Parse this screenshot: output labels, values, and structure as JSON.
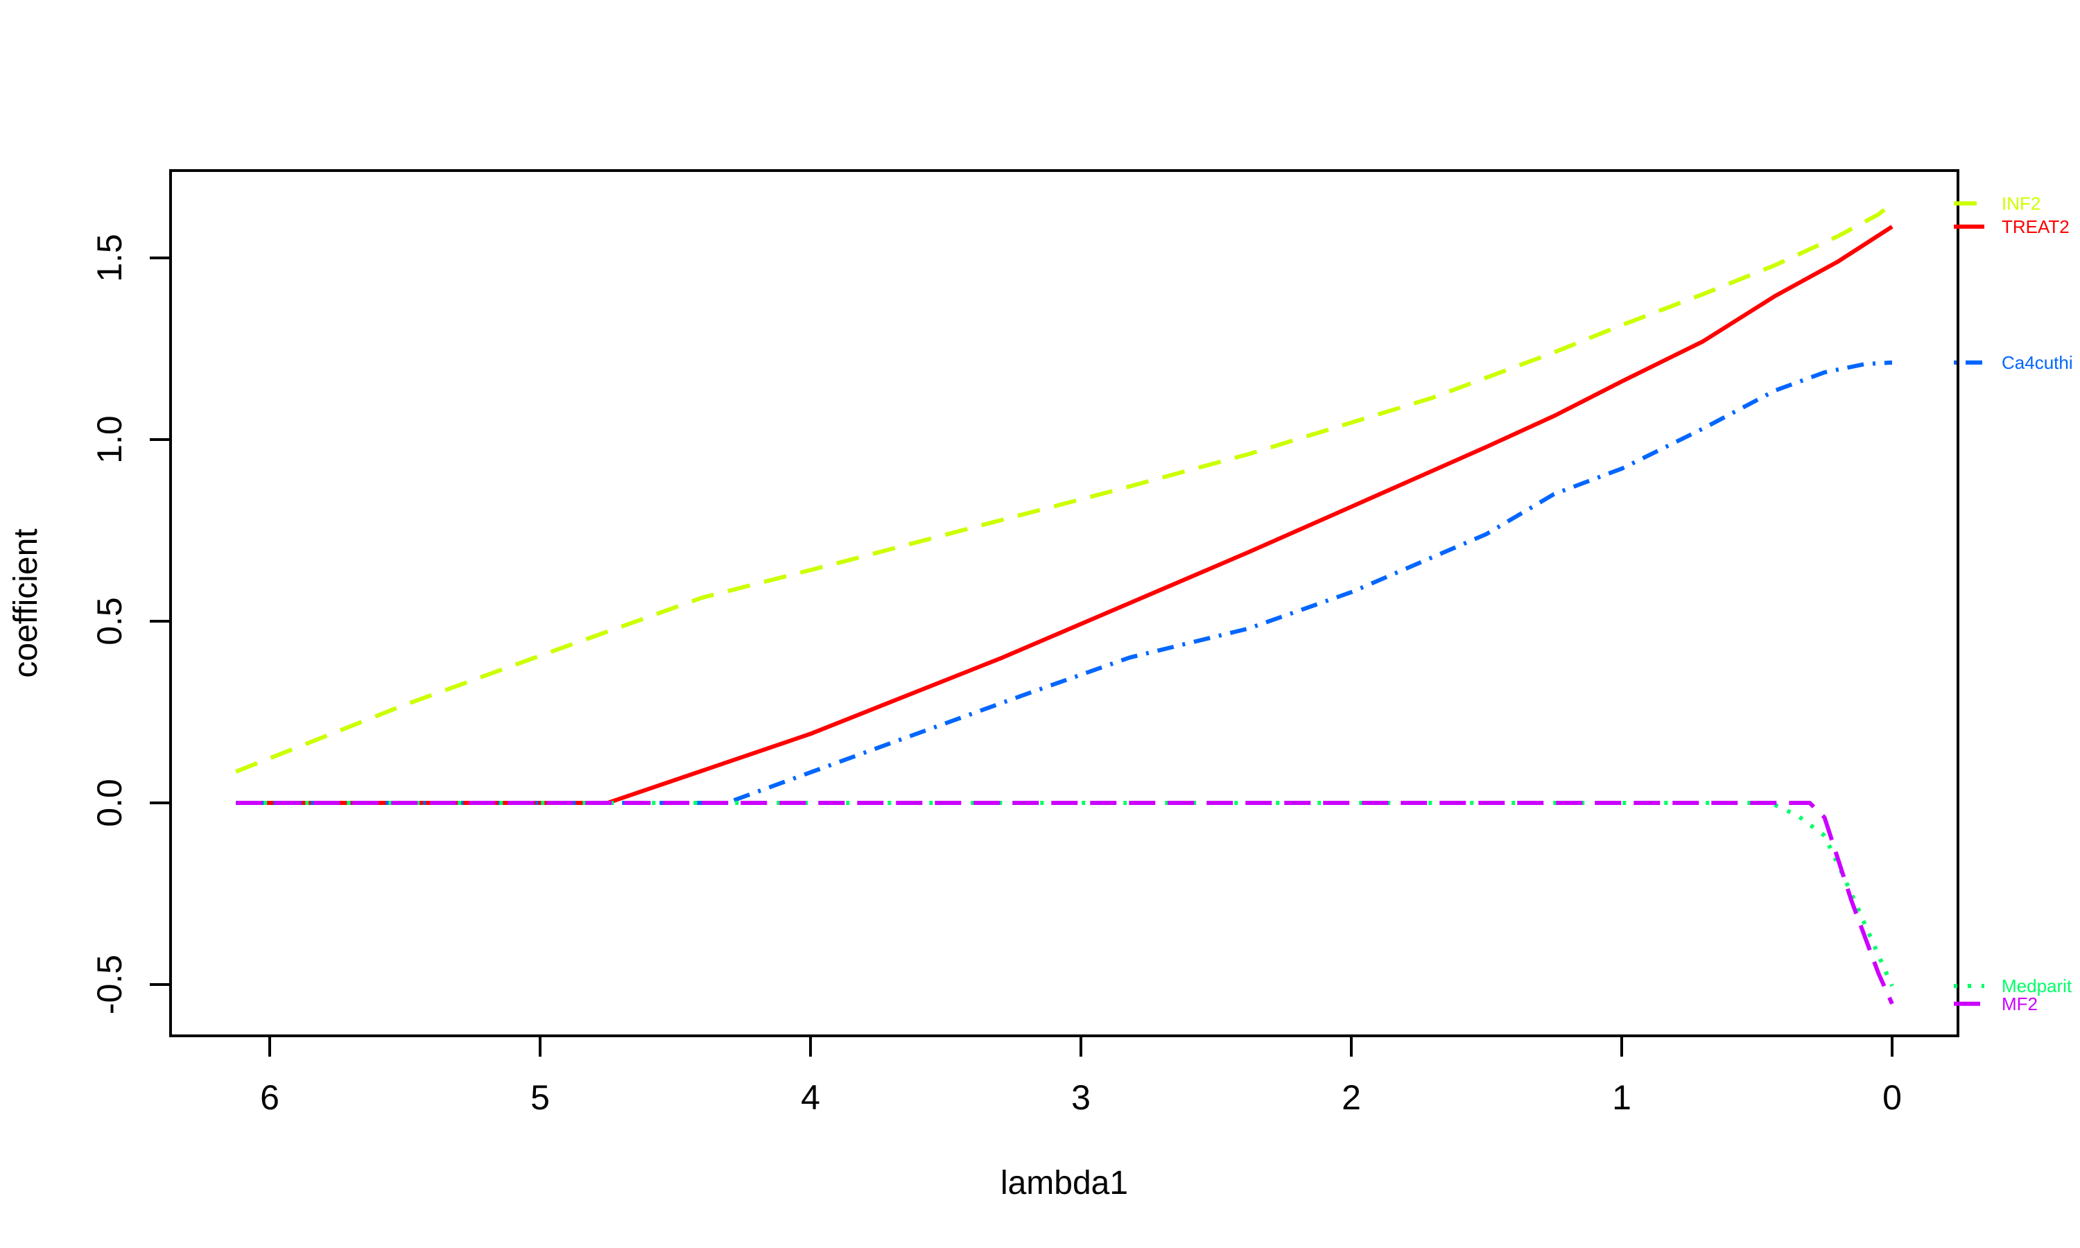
{
  "figure": {
    "background": "#FFFFFF",
    "axis_color": "#000000"
  },
  "chart_data": {
    "type": "line",
    "title": "",
    "xlabel": "lambda1",
    "ylabel": "coefficient",
    "x_reversed": true,
    "grid": false,
    "xlim": [
      6.37,
      -0.24
    ],
    "ylim": [
      -0.64,
      1.74
    ],
    "x_ticks": [
      "6",
      "5",
      "4",
      "3",
      "2",
      "1",
      "0"
    ],
    "y_ticks": [
      "-0.5",
      "0.0",
      "0.5",
      "1.0",
      "1.5"
    ],
    "legend_position": "right-margin-at-curve-end",
    "series": [
      {
        "name": "INF2",
        "color": "#CCFF00",
        "linestyle": "dashed",
        "dash": [
          33,
          21
        ],
        "points": [
          [
            6.125,
            0.086
          ],
          [
            5.5,
            0.27
          ],
          [
            5.0,
            0.405
          ],
          [
            4.4,
            0.565
          ],
          [
            3.9,
            0.66
          ],
          [
            3.41,
            0.756
          ],
          [
            2.9,
            0.855
          ],
          [
            2.38,
            0.96
          ],
          [
            1.7,
            1.115
          ],
          [
            1.25,
            1.24
          ],
          [
            1.0,
            1.315
          ],
          [
            0.7,
            1.4
          ],
          [
            0.433,
            1.48
          ],
          [
            0.2,
            1.56
          ],
          [
            0.05,
            1.62
          ],
          [
            0.0,
            1.65
          ]
        ]
      },
      {
        "name": "TREAT2",
        "color": "#FF0000",
        "linestyle": "solid",
        "dash": [],
        "points": [
          [
            6.125,
            0.0
          ],
          [
            4.75,
            0.0
          ],
          [
            4.0,
            0.19
          ],
          [
            3.29,
            0.4
          ],
          [
            2.38,
            0.69
          ],
          [
            2.0,
            0.815
          ],
          [
            1.5,
            0.98
          ],
          [
            1.25,
            1.065
          ],
          [
            1.0,
            1.16
          ],
          [
            0.7,
            1.27
          ],
          [
            0.433,
            1.395
          ],
          [
            0.2,
            1.49
          ],
          [
            0.0,
            1.586
          ]
        ]
      },
      {
        "name": "Ca4cuthi",
        "color": "#0066FF",
        "linestyle": "dotdash",
        "dash": [
          4,
          13,
          24,
          13
        ],
        "points": [
          [
            6.125,
            0.0
          ],
          [
            4.31,
            0.0
          ],
          [
            3.72,
            0.16
          ],
          [
            3.2,
            0.3
          ],
          [
            2.82,
            0.4
          ],
          [
            2.38,
            0.48
          ],
          [
            2.0,
            0.58
          ],
          [
            1.5,
            0.74
          ],
          [
            1.25,
            0.85
          ],
          [
            1.0,
            0.92
          ],
          [
            0.7,
            1.03
          ],
          [
            0.433,
            1.135
          ],
          [
            0.25,
            1.185
          ],
          [
            0.1,
            1.208
          ],
          [
            0.0,
            1.212
          ]
        ]
      },
      {
        "name": "Medparit",
        "color": "#00FF66",
        "linestyle": "dotted",
        "dash": [
          5,
          15
        ],
        "points": [
          [
            6.125,
            0.0
          ],
          [
            0.45,
            0.0
          ],
          [
            0.35,
            -0.035
          ],
          [
            0.25,
            -0.09
          ],
          [
            0.15,
            -0.25
          ],
          [
            0.05,
            -0.42
          ],
          [
            0.0,
            -0.504
          ]
        ]
      },
      {
        "name": "MF2",
        "color": "#CC00FF",
        "linestyle": "longdash",
        "dash": [
          38,
          18
        ],
        "points": [
          [
            6.125,
            0.0
          ],
          [
            0.305,
            0.0
          ],
          [
            0.25,
            -0.04
          ],
          [
            0.15,
            -0.27
          ],
          [
            0.05,
            -0.47
          ],
          [
            0.0,
            -0.553
          ]
        ]
      }
    ],
    "legend": {
      "entries": [
        {
          "label": "INF2",
          "color": "#CCFF00",
          "dash": [
            33,
            21
          ],
          "at_value": 1.65
        },
        {
          "label": "TREAT2",
          "color": "#FF0000",
          "dash": [],
          "at_value": 1.586
        },
        {
          "label": "Ca4cuthi",
          "color": "#0066FF",
          "dash": [
            4,
            13,
            24,
            13
          ],
          "at_value": 1.212
        },
        {
          "label": "Medparit",
          "color": "#00FF66",
          "dash": [
            5,
            15
          ],
          "at_value": -0.504
        },
        {
          "label": "MF2",
          "color": "#CC00FF",
          "dash": [
            38,
            18
          ],
          "at_value": -0.553
        }
      ]
    }
  }
}
